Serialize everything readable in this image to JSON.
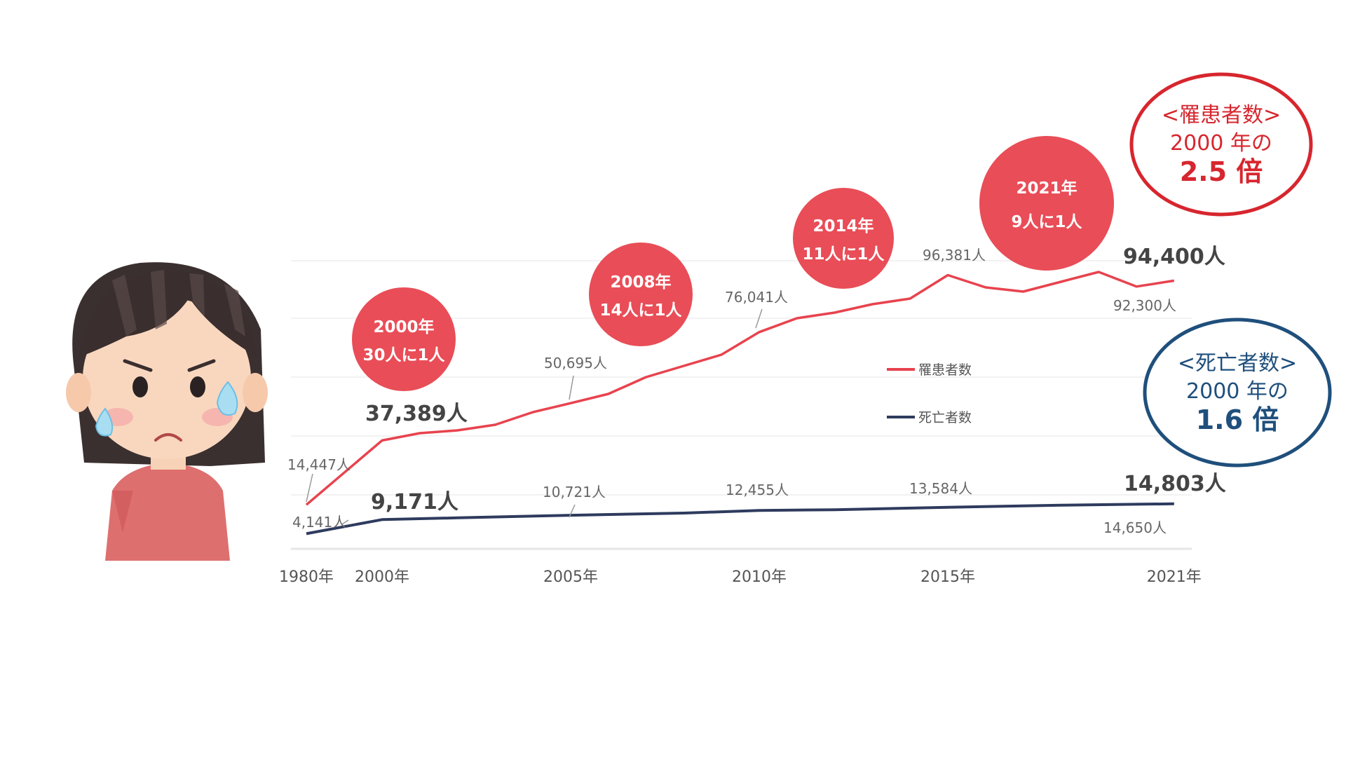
{
  "colors": {
    "incidence": "#e8434e",
    "deaths": "#2e3b5e",
    "oval_red": "#d7262e",
    "oval_blue": "#1f4f7c"
  },
  "chart_data": {
    "type": "line",
    "x_ticks": [
      "1980年",
      "2000年",
      "2005年",
      "2010年",
      "2015年",
      "2021年"
    ],
    "legend": [
      {
        "key": "incidence",
        "label": "罹患者数"
      },
      {
        "key": "deaths",
        "label": "死亡者数"
      }
    ],
    "series": [
      {
        "key": "incidence",
        "name": "罹患者数",
        "points": [
          [
            1980,
            14447
          ],
          [
            2000,
            37389
          ],
          [
            2001,
            40000
          ],
          [
            2002,
            41000
          ],
          [
            2003,
            43000
          ],
          [
            2004,
            47500
          ],
          [
            2005,
            50695
          ],
          [
            2006,
            54000
          ],
          [
            2007,
            60000
          ],
          [
            2008,
            64000
          ],
          [
            2009,
            68000
          ],
          [
            2010,
            76041
          ],
          [
            2011,
            81000
          ],
          [
            2012,
            83000
          ],
          [
            2013,
            86000
          ],
          [
            2014,
            88000
          ],
          [
            2015,
            96381
          ],
          [
            2016,
            92000
          ],
          [
            2017,
            90500
          ],
          [
            2018,
            94000
          ],
          [
            2019,
            97500
          ],
          [
            2020,
            92300
          ],
          [
            2021,
            94400
          ]
        ]
      },
      {
        "key": "deaths",
        "name": "死亡者数",
        "points": [
          [
            1980,
            4141
          ],
          [
            2000,
            9171
          ],
          [
            2002,
            9800
          ],
          [
            2005,
            10721
          ],
          [
            2008,
            11500
          ],
          [
            2010,
            12455
          ],
          [
            2012,
            12700
          ],
          [
            2015,
            13584
          ],
          [
            2018,
            14300
          ],
          [
            2020,
            14650
          ],
          [
            2021,
            14803
          ]
        ]
      }
    ],
    "value_labels": [
      {
        "series": "incidence",
        "year": 1980,
        "text": "14,447人",
        "style": "small"
      },
      {
        "series": "incidence",
        "year": 2000,
        "text": "37,389人",
        "style": "big"
      },
      {
        "series": "incidence",
        "year": 2005,
        "text": "50,695人",
        "style": "small"
      },
      {
        "series": "incidence",
        "year": 2010,
        "text": "76,041人",
        "style": "small"
      },
      {
        "series": "incidence",
        "year": 2015,
        "text": "96,381人",
        "style": "small"
      },
      {
        "series": "incidence",
        "year": 2020,
        "text": "92,300人",
        "style": "small"
      },
      {
        "series": "incidence",
        "year": 2021,
        "text": "94,400人",
        "style": "big"
      },
      {
        "series": "deaths",
        "year": 1980,
        "text": "4,141人",
        "style": "small"
      },
      {
        "series": "deaths",
        "year": 2000,
        "text": "9,171人",
        "style": "big"
      },
      {
        "series": "deaths",
        "year": 2005,
        "text": "10,721人",
        "style": "small"
      },
      {
        "series": "deaths",
        "year": 2010,
        "text": "12,455人",
        "style": "small"
      },
      {
        "series": "deaths",
        "year": 2015,
        "text": "13,584人",
        "style": "small"
      },
      {
        "series": "deaths",
        "year": 2020,
        "text": "14,650人",
        "style": "small"
      },
      {
        "series": "deaths",
        "year": 2021,
        "text": "14,803人",
        "style": "big"
      }
    ],
    "annotations": [
      {
        "line1": "2000年",
        "line2": "30人に1人"
      },
      {
        "line1": "2008年",
        "line2": "14人に1人"
      },
      {
        "line1": "2014年",
        "line2": "11人に1人"
      },
      {
        "line1": "2021年",
        "line2": "9人に1人"
      }
    ],
    "callouts": [
      {
        "key": "incidence",
        "line1": "<罹患者数>",
        "line2": "2000 年の",
        "line3": "2.5 倍"
      },
      {
        "key": "deaths",
        "line1": "<死亡者数>",
        "line2": "2000 年の",
        "line3": "1.6 倍"
      }
    ]
  }
}
